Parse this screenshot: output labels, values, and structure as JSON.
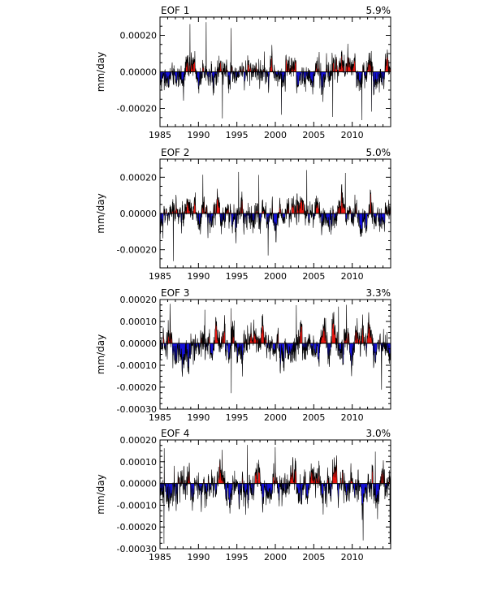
{
  "chart_data": [
    {
      "type": "area",
      "panel": 1,
      "title": "EOF 1",
      "variance": "5.9%",
      "ylabel": "mm/day",
      "xlabel": "",
      "x_ticks": [
        1985,
        1990,
        1995,
        2000,
        2005,
        2010
      ],
      "x_tick_labels": [
        "1985",
        "1990",
        "1995",
        "2000",
        "2005",
        "2010"
      ],
      "xlim": [
        1985,
        2015
      ],
      "y_ticks": [
        0.0002,
        0.0,
        -0.0002
      ],
      "y_tick_labels": [
        "0.00020",
        "0.00000",
        "-0.00020"
      ],
      "ylim": [
        -0.0003,
        0.0003
      ],
      "series": [
        {
          "name": "positive",
          "color": "#e8150f"
        },
        {
          "name": "negative",
          "color": "#1410d9"
        }
      ],
      "seed": 11
    },
    {
      "type": "area",
      "panel": 2,
      "title": "EOF 2",
      "variance": "5.0%",
      "ylabel": "mm/day",
      "xlabel": "",
      "x_ticks": [
        1985,
        1990,
        1995,
        2000,
        2005,
        2010
      ],
      "x_tick_labels": [
        "1985",
        "1990",
        "1995",
        "2000",
        "2005",
        "2010"
      ],
      "xlim": [
        1985,
        2015
      ],
      "y_ticks": [
        0.0002,
        0.0,
        -0.0002
      ],
      "y_tick_labels": [
        "0.00020",
        "0.00000",
        "-0.00020"
      ],
      "ylim": [
        -0.0003,
        0.0003
      ],
      "series": [
        {
          "name": "positive",
          "color": "#e8150f"
        },
        {
          "name": "negative",
          "color": "#1410d9"
        }
      ],
      "seed": 23
    },
    {
      "type": "area",
      "panel": 3,
      "title": "EOF 3",
      "variance": "3.3%",
      "ylabel": "mm/day",
      "xlabel": "",
      "x_ticks": [
        1985,
        1990,
        1995,
        2000,
        2005,
        2010
      ],
      "x_tick_labels": [
        "1985",
        "1990",
        "1995",
        "2000",
        "2005",
        "2010"
      ],
      "xlim": [
        1985,
        2015
      ],
      "y_ticks": [
        0.0002,
        0.0001,
        0.0,
        -0.0001,
        -0.0002,
        -0.0003
      ],
      "y_tick_labels": [
        "0.00020",
        "0.00010",
        "0.00000",
        "-0.00010",
        "-0.00020",
        "-0.00030"
      ],
      "ylim": [
        -0.0003,
        0.0002
      ],
      "series": [
        {
          "name": "positive",
          "color": "#e8150f"
        },
        {
          "name": "negative",
          "color": "#1410d9"
        }
      ],
      "seed": 37
    },
    {
      "type": "area",
      "panel": 4,
      "title": "EOF 4",
      "variance": "3.0%",
      "ylabel": "mm/day",
      "xlabel": "",
      "x_ticks": [
        1985,
        1990,
        1995,
        2000,
        2005,
        2010
      ],
      "x_tick_labels": [
        "1985",
        "1990",
        "1995",
        "2000",
        "2005",
        "2010"
      ],
      "xlim": [
        1985,
        2015
      ],
      "y_ticks": [
        0.0002,
        0.0001,
        0.0,
        -0.0001,
        -0.0002,
        -0.0003
      ],
      "y_tick_labels": [
        "0.00020",
        "0.00010",
        "0.00000",
        "-0.00010",
        "-0.00020",
        "-0.00030"
      ],
      "ylim": [
        -0.0003,
        0.0002
      ],
      "series": [
        {
          "name": "positive",
          "color": "#e8150f"
        },
        {
          "name": "negative",
          "color": "#1410d9"
        }
      ],
      "seed": 53
    }
  ]
}
